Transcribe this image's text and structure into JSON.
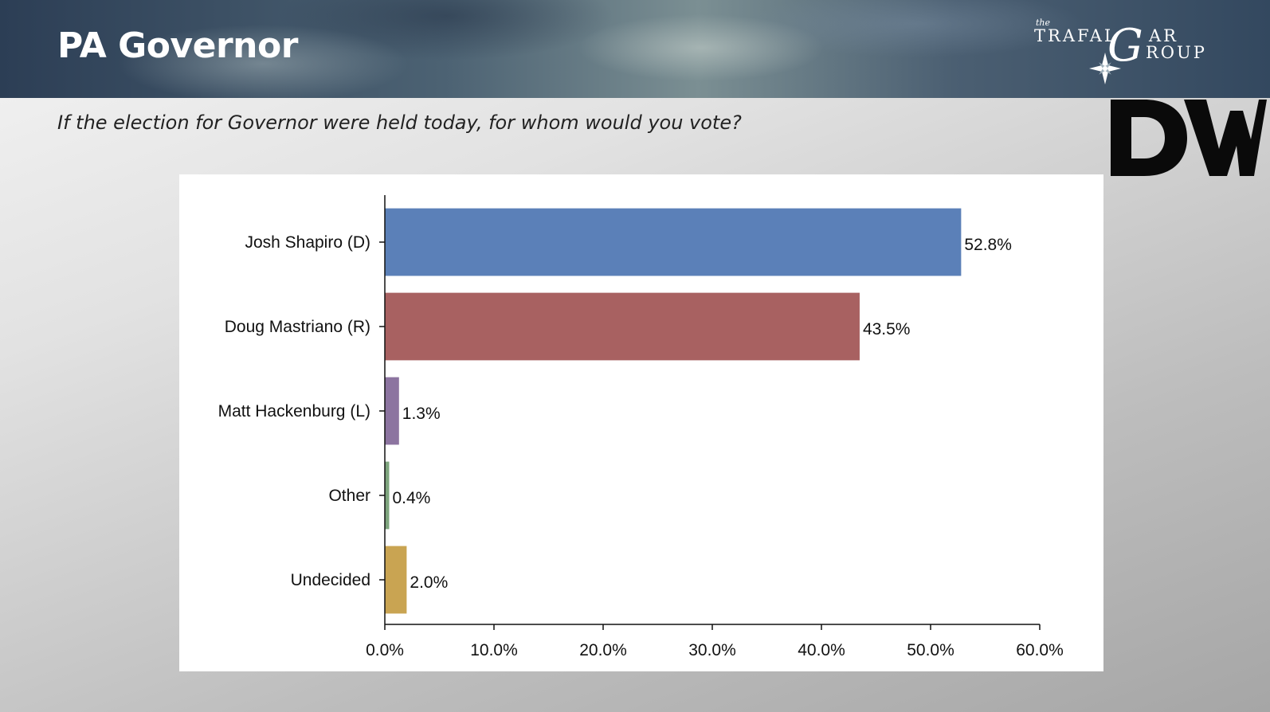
{
  "header": {
    "title": "PA Governor"
  },
  "question": "If the election for Governor were held today, for whom would you vote?",
  "logos": {
    "trafalgar": {
      "the": "the",
      "line1": "TRAFAL",
      "g_letter": "G",
      "line1_end": "AR",
      "line2": "ROUP"
    },
    "dw": "DW"
  },
  "chart_data": {
    "type": "bar",
    "orientation": "horizontal",
    "categories": [
      "Josh Shapiro (D)",
      "Doug Mastriano (R)",
      "Matt Hackenburg (L)",
      "Other",
      "Undecided"
    ],
    "values": [
      52.8,
      43.5,
      1.3,
      0.4,
      2.0
    ],
    "value_labels": [
      "52.8%",
      "43.5%",
      "1.3%",
      "0.4%",
      "2.0%"
    ],
    "colors": [
      "#5b80b8",
      "#a86161",
      "#8c74a0",
      "#7ea57e",
      "#c9a452"
    ],
    "xlim": [
      0,
      60
    ],
    "xticks": [
      0,
      10,
      20,
      30,
      40,
      50,
      60
    ],
    "xtick_labels": [
      "0.0%",
      "10.0%",
      "20.0%",
      "30.0%",
      "40.0%",
      "50.0%",
      "60.0%"
    ],
    "grid": false,
    "legend": "none"
  }
}
